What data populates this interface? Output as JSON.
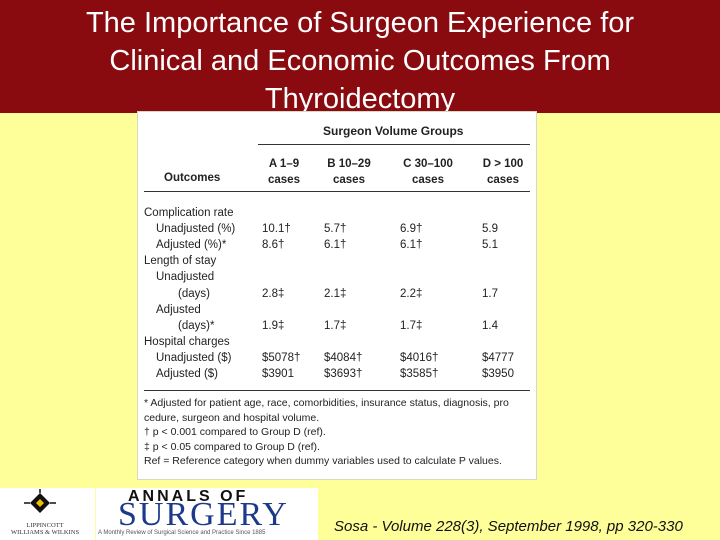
{
  "slide": {
    "title_lines": [
      "The Importance of Surgeon Experience for",
      "Clinical and Economic Outcomes From",
      "Thyroidectomy"
    ],
    "citation": "Sosa - Volume 228(3), September 1998, pp 320-330",
    "colors": {
      "title_band": "#8a0b0f",
      "background": "#ffff99",
      "title_text": "#ffffff"
    }
  },
  "table": {
    "group_header": "Surgeon Volume Groups",
    "outcomes_label": "Outcomes",
    "columns": [
      {
        "line1": "A 1–9",
        "line2": "cases"
      },
      {
        "line1": "B 10–29",
        "line2": "cases"
      },
      {
        "line1": "C 30–100",
        "line2": "cases"
      },
      {
        "line1": "D > 100",
        "line2": "cases"
      }
    ],
    "rows": [
      {
        "label": "Complication rate",
        "indent": 0,
        "values": [
          "",
          "",
          "",
          ""
        ]
      },
      {
        "label": "Unadjusted (%)",
        "indent": 1,
        "values": [
          "10.1†",
          "5.7†",
          "6.9†",
          "5.9"
        ]
      },
      {
        "label": "Adjusted (%)*",
        "indent": 1,
        "values": [
          "8.6†",
          "6.1†",
          "6.1†",
          "5.1"
        ]
      },
      {
        "label": "Length of stay",
        "indent": 0,
        "values": [
          "",
          "",
          "",
          ""
        ]
      },
      {
        "label": "Unadjusted",
        "indent": 1,
        "values": [
          "",
          "",
          "",
          ""
        ]
      },
      {
        "label": "(days)",
        "indent": 2,
        "values": [
          "2.8‡",
          "2.1‡",
          "2.2‡",
          "1.7"
        ]
      },
      {
        "label": "Adjusted",
        "indent": 1,
        "values": [
          "",
          "",
          "",
          ""
        ]
      },
      {
        "label": "(days)*",
        "indent": 2,
        "values": [
          "1.9‡",
          "1.7‡",
          "1.7‡",
          "1.4"
        ]
      },
      {
        "label": "Hospital charges",
        "indent": 0,
        "values": [
          "",
          "",
          "",
          ""
        ]
      },
      {
        "label": "Unadjusted ($)",
        "indent": 1,
        "values": [
          "$5078†",
          "$4084†",
          "$4016†",
          "$4777"
        ]
      },
      {
        "label": "Adjusted ($)",
        "indent": 1,
        "values": [
          "$3901",
          "$3693†",
          "$3585†",
          "$3950"
        ]
      }
    ],
    "notes": [
      "* Adjusted for patient age, race, comorbidities, insurance status, diagnosis, pro",
      "  cedure, surgeon and hospital volume.",
      "† p < 0.001 compared to Group D (ref).",
      "‡ p < 0.05 compared to Group D (ref).",
      "Ref = Reference category when dummy variables used to calculate P values."
    ]
  },
  "logos": {
    "lww_lines": [
      "LIPPINCOTT",
      "WILLIAMS & WILKINS"
    ],
    "annals_top": "ANNALS OF",
    "annals_main": "SURGERY",
    "annals_sub": "A Monthly Review of Surgical Science and Practice Since 1885"
  }
}
